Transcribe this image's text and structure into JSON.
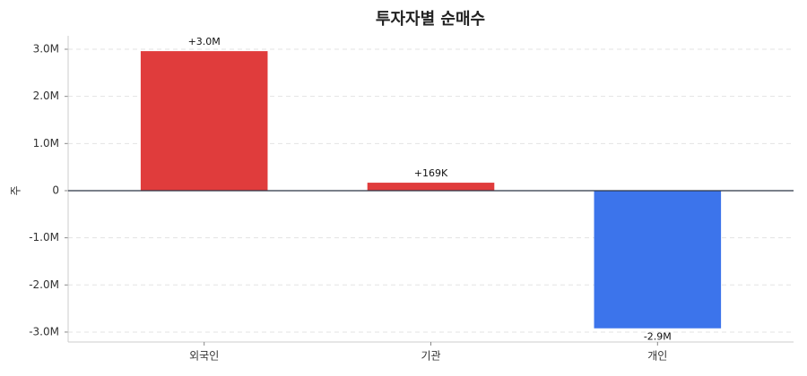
{
  "chart_data": {
    "type": "bar",
    "title": "투자자별 순매수",
    "y_label": "주",
    "categories": [
      "외국인",
      "기관",
      "개인"
    ],
    "values": [
      2960000,
      169000,
      -2920000
    ],
    "value_labels": [
      "+3.0M",
      "+169K",
      "-2.9M"
    ],
    "colors": [
      "#e03c3c",
      "#e03c3c",
      "#3c74eb"
    ],
    "ylim": [
      -3210000,
      3285000
    ],
    "yticks": [
      {
        "value": -3000000,
        "label": "-3.0M"
      },
      {
        "value": -2000000,
        "label": "-2.0M"
      },
      {
        "value": -1000000,
        "label": "-1.0M"
      },
      0,
      {
        "value": 1000000,
        "label": "1.0M"
      },
      {
        "value": 2000000,
        "label": "2.0M"
      },
      {
        "value": 3000000,
        "label": "3.0M"
      }
    ],
    "grid": true
  }
}
